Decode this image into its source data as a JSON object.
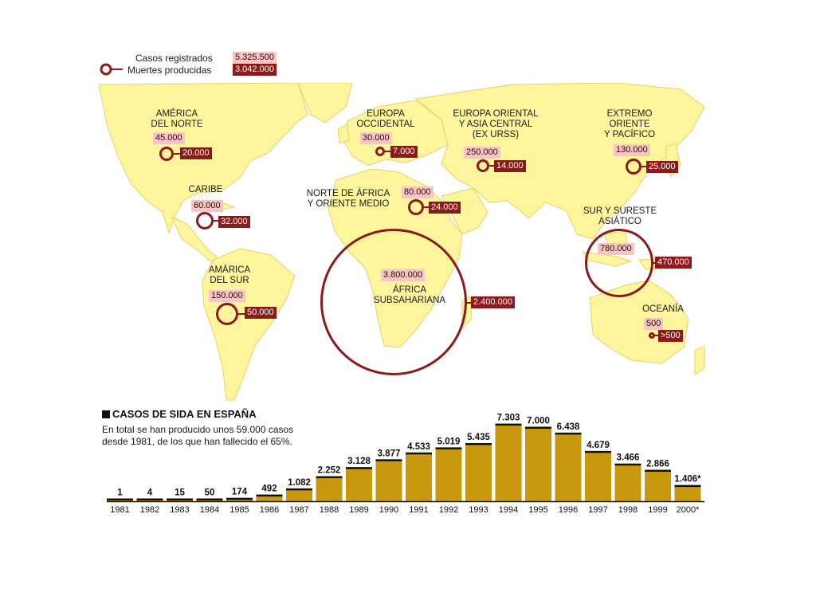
{
  "colors": {
    "land": "#fff59d",
    "accent": "#8b1a1a",
    "pink": "#f7c5c3",
    "bar": "#c8990e"
  },
  "legend": {
    "registered_label": "Casos registrados",
    "registered_value": "5.325.500",
    "deaths_label": "Muertes producidas",
    "deaths_value": "3.042.000"
  },
  "regions": [
    {
      "name": "AMÉRICA\nDEL NORTE",
      "cases": "45.000",
      "deaths": "20.000"
    },
    {
      "name": "CARIBE",
      "cases": "60.000",
      "deaths": "32.000"
    },
    {
      "name": "AMÁRICA\nDEL SUR",
      "cases": "150.000",
      "deaths": "50.000"
    },
    {
      "name": "EUROPA\nOCCIDENTAL",
      "cases": "30.000",
      "deaths": "7.000"
    },
    {
      "name": "NORTE DE ÁFRICA\nY ORIENTE MEDIO",
      "cases": "80.000",
      "deaths": "24.000"
    },
    {
      "name": "EUROPA ORIENTAL\nY ASIA CENTRAL\n(EX URSS)",
      "cases": "250.000",
      "deaths": "14.000"
    },
    {
      "name": "EXTREMO\nORIENTE\nY PACÍFICO",
      "cases": "130.000",
      "deaths": "25.000"
    },
    {
      "name": "SUR Y SURESTE\nASIÁTICO",
      "cases": "780.000",
      "deaths": "470.000"
    },
    {
      "name": "ÁFRICA\nSUBSAHARIANA",
      "cases": "3.800.000",
      "deaths": "2.400.000"
    },
    {
      "name": "OCEANÍA",
      "cases": "500",
      "deaths": ">500"
    }
  ],
  "chart_data": {
    "type": "bar",
    "title": "CASOS DE SIDA EN ESPAÑA",
    "note": "En total se han producido unos 59.000 casos desde 1981, de los que han fallecido el 65%.",
    "categories": [
      "1981",
      "1982",
      "1983",
      "1984",
      "1985",
      "1986",
      "1987",
      "1988",
      "1989",
      "1990",
      "1991",
      "1992",
      "1993",
      "1994",
      "1995",
      "1996",
      "1997",
      "1998",
      "1999",
      "2000*"
    ],
    "values": [
      1,
      4,
      15,
      50,
      174,
      492,
      1082,
      2252,
      3128,
      3877,
      4533,
      5019,
      5435,
      7303,
      7000,
      6438,
      4679,
      3466,
      2866,
      1406
    ],
    "value_labels": [
      "1",
      "4",
      "15",
      "50",
      "174",
      "492",
      "1.082",
      "2.252",
      "3.128",
      "3.877",
      "4.533",
      "5.019",
      "5.435",
      "7.303",
      "7.000",
      "6.438",
      "4.679",
      "3.466",
      "2.866",
      "1.406*"
    ],
    "ylim": [
      0,
      7500
    ],
    "grid": false
  }
}
